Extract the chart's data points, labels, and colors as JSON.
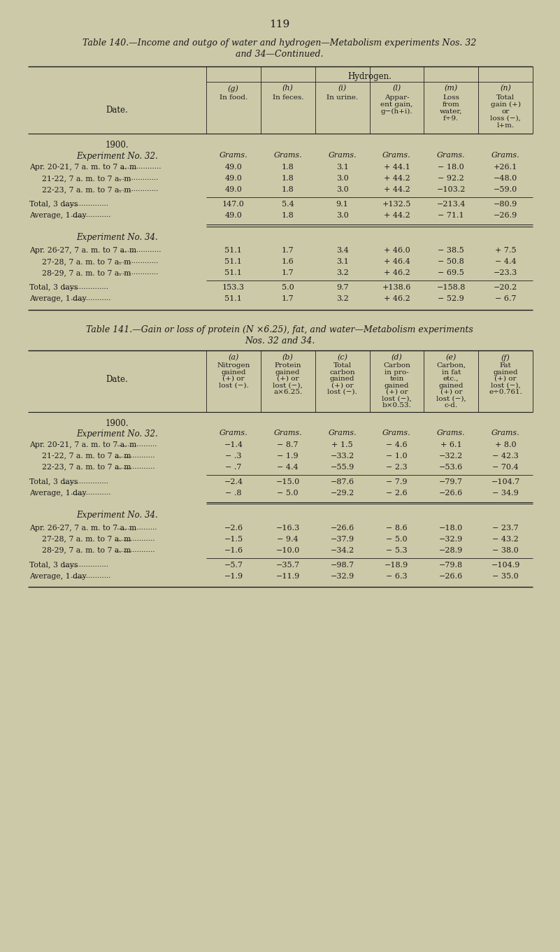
{
  "bg_color": "#ccc9a8",
  "text_color": "#1a1a1a",
  "page_number": "119",
  "table140_title_line1": "Table 140.—Income and outgo of water and hydrogen—Metabolism experiments Nos. 32",
  "table140_title_line2": "and 34—Continued.",
  "table141_title_line1": "Table 141.—Gain or loss of protein (N ×6.25), fat, and water—Metabolism experiments",
  "table141_title_line2": "Nos. 32 and 34.",
  "t140_header_group": "Hydrogen.",
  "t140_col_labels": [
    "(g)\nIn food.",
    "(h)\nIn feces.",
    "(i)\nIn urine.",
    "(l)\nAppar-\nent gain,\ng−(h+i).",
    "(m)\nLoss\nfrom\nwater,\nf÷9.",
    "(n)\nTotal\ngain (+)\nor\nloss (−),\nl+m."
  ],
  "t140_date_col": "Date.",
  "t140_year": "1900.",
  "t140_exp32_label": "Experiment No. 32.",
  "t140_exp32_rows": [
    [
      "Apr. 20-21, 7 a. m. to 7 a. m",
      "49.0",
      "1.8",
      "3.1",
      "+ 44.1",
      "− 18.0",
      "+26.1"
    ],
    [
      "21-22, 7 a. m. to 7 a. m",
      "49.0",
      "1.8",
      "3.0",
      "+ 44.2",
      "− 92.2",
      "−48.0"
    ],
    [
      "22-23, 7 a. m. to 7 a. m",
      "49.0",
      "1.8",
      "3.0",
      "+ 44.2",
      "−103.2",
      "−59.0"
    ]
  ],
  "t140_exp32_total": [
    "Total, 3 days",
    "147.0",
    "5.4",
    "9.1",
    "+132.5",
    "−213.4",
    "−80.9"
  ],
  "t140_exp32_avg": [
    "Average, 1 day",
    "49.0",
    "1.8",
    "3.0",
    "+ 44.2",
    "− 71.1",
    "−26.9"
  ],
  "t140_exp34_label": "Experiment No. 34.",
  "t140_exp34_rows": [
    [
      "Apr. 26-27, 7 a. m. to 7 a. m",
      "51.1",
      "1.7",
      "3.4",
      "+ 46.0",
      "− 38.5",
      "+ 7.5"
    ],
    [
      "27-28, 7 a. m. to 7 a. m",
      "51.1",
      "1.6",
      "3.1",
      "+ 46.4",
      "− 50.8",
      "− 4.4"
    ],
    [
      "28-29, 7 a. m. to 7 a. m",
      "51.1",
      "1.7",
      "3.2",
      "+ 46.2",
      "− 69.5",
      "−23.3"
    ]
  ],
  "t140_exp34_total": [
    "Total, 3 days",
    "153.3",
    "5.0",
    "9.7",
    "+138.6",
    "−158.8",
    "−20.2"
  ],
  "t140_exp34_avg": [
    "Average, 1 day",
    "51.1",
    "1.7",
    "3.2",
    "+ 46.2",
    "− 52.9",
    "− 6.7"
  ],
  "t141_col_labels": [
    "(a)\nNitrogen\ngained\n(+) or\nlost (−).",
    "(b)\nProtein\ngained\n(+) or\nlost (−),\na×6.25.",
    "(c)\nTotal\ncarbon\ngained\n(+) or\nlost (−).",
    "(d)\nCarbon\nin pro-\ntein\ngained\n(+) or\nlost (−),\nb×0.53.",
    "(e)\nCarbon,\nin fat\netc.,\ngained\n(+) or\nlost (−),\nc-d.",
    "(f)\nFat\ngained\n(+) or\nlost (−),\ne÷0.761."
  ],
  "t141_date_col": "Date.",
  "t141_year": "1900.",
  "t141_exp32_label": "Experiment No. 32.",
  "t141_exp32_rows": [
    [
      "Apr. 20-21, 7 a. m. to 7 a. m",
      "−1.4",
      "− 8.7",
      "+ 1.5",
      "− 4.6",
      "+ 6.1",
      "+ 8.0"
    ],
    [
      "21-22, 7 a. m. to 7 a. m",
      "− .3",
      "− 1.9",
      "−33.2",
      "− 1.0",
      "−32.2",
      "− 42.3"
    ],
    [
      "22-23, 7 a. m. to 7 a. m",
      "− .7",
      "− 4.4",
      "−55.9",
      "− 2.3",
      "−53.6",
      "− 70.4"
    ]
  ],
  "t141_exp32_total": [
    "Total, 3 days",
    "−2.4",
    "−15.0",
    "−87.6",
    "− 7.9",
    "−79.7",
    "−104.7"
  ],
  "t141_exp32_avg": [
    "Average, 1 day",
    "− .8",
    "− 5.0",
    "−29.2",
    "− 2.6",
    "−26.6",
    "− 34.9"
  ],
  "t141_exp34_label": "Experiment No. 34.",
  "t141_exp34_rows": [
    [
      "Apr. 26-27, 7 a. m. to 7 a. m",
      "−2.6",
      "−16.3",
      "−26.6",
      "− 8.6",
      "−18.0",
      "− 23.7"
    ],
    [
      "27-28, 7 a. m. to 7 a. m",
      "−1.5",
      "− 9.4",
      "−37.9",
      "− 5.0",
      "−32.9",
      "− 43.2"
    ],
    [
      "28-29, 7 a. m. to 7 a. m",
      "−1.6",
      "−10.0",
      "−34.2",
      "− 5.3",
      "−28.9",
      "− 38.0"
    ]
  ],
  "t141_exp34_total": [
    "Total, 3 days",
    "−5.7",
    "−35.7",
    "−98.7",
    "−18.9",
    "−79.8",
    "−104.9"
  ],
  "t141_exp34_avg": [
    "Average, 1 day",
    "−1.9",
    "−11.9",
    "−32.9",
    "− 6.3",
    "−26.6",
    "− 35.0"
  ]
}
